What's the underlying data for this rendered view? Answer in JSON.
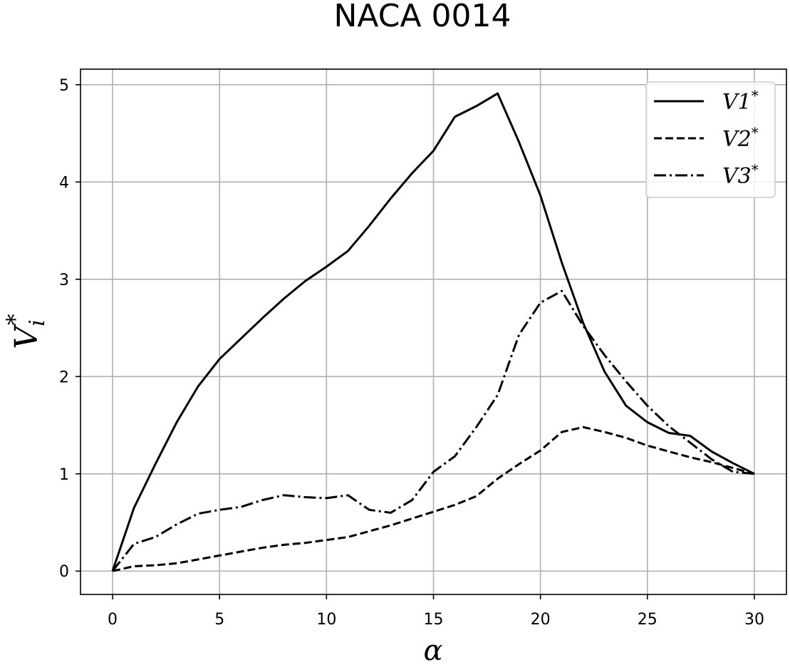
{
  "chart_data": {
    "type": "line",
    "title": "NACA 0014",
    "xlabel": "α",
    "ylabel": "V",
    "ylabel_sub": "i",
    "ylabel_sup": "*",
    "xlim": [
      -1.5,
      31.5
    ],
    "ylim": [
      -0.24,
      5.16
    ],
    "xticks": [
      0,
      5,
      10,
      15,
      20,
      25,
      30
    ],
    "yticks": [
      0,
      1,
      2,
      3,
      4,
      5
    ],
    "grid": true,
    "legend_position": "top-right",
    "series": [
      {
        "name": "V1",
        "name_sup": "*",
        "dash": "solid",
        "x": [
          0,
          1,
          2,
          3,
          4,
          5,
          6,
          7,
          8,
          9,
          10,
          11,
          12,
          13,
          14,
          15,
          16,
          17,
          18,
          19,
          20,
          21,
          22,
          23,
          24,
          25,
          26,
          27,
          28,
          29,
          30
        ],
        "y": [
          0,
          0.65,
          1.1,
          1.53,
          1.9,
          2.18,
          2.39,
          2.6,
          2.8,
          2.98,
          3.13,
          3.29,
          3.55,
          3.83,
          4.09,
          4.32,
          4.67,
          4.78,
          4.91,
          4.41,
          3.86,
          3.17,
          2.55,
          2.05,
          1.7,
          1.53,
          1.42,
          1.39,
          1.23,
          1.11,
          1.0
        ]
      },
      {
        "name": "V2",
        "name_sup": "*",
        "dash": "dashed",
        "x": [
          0,
          1,
          2,
          3,
          4,
          5,
          6,
          7,
          8,
          9,
          10,
          11,
          12,
          13,
          14,
          15,
          16,
          17,
          18,
          19,
          20,
          21,
          22,
          23,
          24,
          25,
          26,
          27,
          28,
          29,
          30
        ],
        "y": [
          0,
          0.05,
          0.06,
          0.08,
          0.12,
          0.16,
          0.2,
          0.24,
          0.27,
          0.29,
          0.32,
          0.35,
          0.41,
          0.47,
          0.54,
          0.61,
          0.68,
          0.77,
          0.95,
          1.1,
          1.24,
          1.43,
          1.48,
          1.43,
          1.37,
          1.29,
          1.23,
          1.17,
          1.12,
          1.06,
          1.0
        ]
      },
      {
        "name": "V3",
        "name_sup": "*",
        "dash": "dashdot",
        "x": [
          0,
          1,
          2,
          3,
          4,
          5,
          6,
          7,
          8,
          9,
          10,
          11,
          12,
          13,
          14,
          15,
          16,
          17,
          18,
          19,
          20,
          21,
          22,
          23,
          24,
          25,
          26,
          27,
          28,
          29,
          30
        ],
        "y": [
          0,
          0.28,
          0.35,
          0.48,
          0.59,
          0.63,
          0.66,
          0.73,
          0.78,
          0.76,
          0.75,
          0.78,
          0.63,
          0.6,
          0.73,
          1.02,
          1.18,
          1.48,
          1.81,
          2.43,
          2.76,
          2.88,
          2.52,
          2.22,
          1.95,
          1.7,
          1.49,
          1.32,
          1.15,
          1.02,
          1.0
        ]
      }
    ]
  }
}
